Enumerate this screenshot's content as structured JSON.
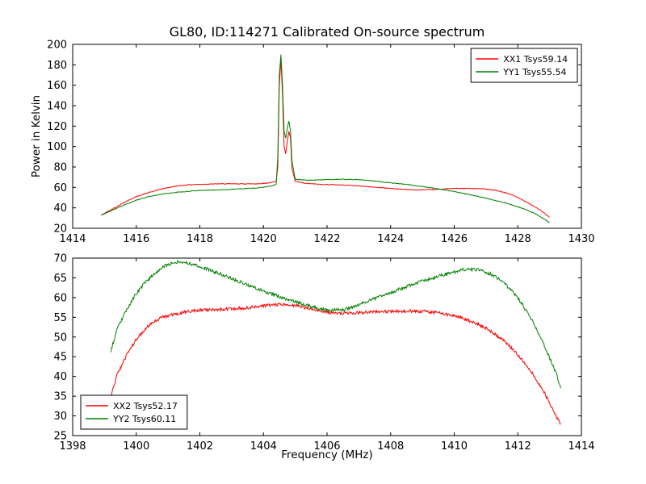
{
  "figure": {
    "background": "#ffffff",
    "frame_color": "#000000"
  },
  "chart_data": [
    {
      "type": "line",
      "name": "top-plot",
      "title": "GL80, ID:114271 Calibrated On-source spectrum",
      "xlabel": "",
      "ylabel": "Power in Kelvin",
      "xlim": [
        1414,
        1430
      ],
      "ylim": [
        20,
        200
      ],
      "xticks": [
        1414,
        1416,
        1418,
        1420,
        1422,
        1424,
        1426,
        1428,
        1430
      ],
      "yticks": [
        20,
        40,
        60,
        80,
        100,
        120,
        140,
        160,
        180,
        200
      ],
      "grid": false,
      "legend_position": "top-right",
      "series": [
        {
          "name": "XX1 Tsys59.14",
          "color": "#ff0000",
          "noise": 0.3,
          "points": [
            [
              1414.9,
              33
            ],
            [
              1415.2,
              38
            ],
            [
              1415.6,
              45
            ],
            [
              1416.0,
              51
            ],
            [
              1416.4,
              55
            ],
            [
              1416.8,
              58.5
            ],
            [
              1417.2,
              61
            ],
            [
              1417.6,
              62.5
            ],
            [
              1418.0,
              63
            ],
            [
              1418.6,
              63.5
            ],
            [
              1419.2,
              63.5
            ],
            [
              1419.8,
              63.5
            ],
            [
              1420.2,
              64.5
            ],
            [
              1420.4,
              66
            ],
            [
              1420.45,
              80
            ],
            [
              1420.5,
              160
            ],
            [
              1420.55,
              185
            ],
            [
              1420.6,
              150
            ],
            [
              1420.65,
              100
            ],
            [
              1420.7,
              93
            ],
            [
              1420.75,
              105
            ],
            [
              1420.8,
              115
            ],
            [
              1420.85,
              108
            ],
            [
              1420.9,
              78
            ],
            [
              1421.0,
              66
            ],
            [
              1421.3,
              64
            ],
            [
              1421.8,
              63
            ],
            [
              1422.4,
              62.5
            ],
            [
              1423.0,
              61.5
            ],
            [
              1423.6,
              60
            ],
            [
              1424.2,
              58.5
            ],
            [
              1424.8,
              57.5
            ],
            [
              1425.4,
              58
            ],
            [
              1426.0,
              59
            ],
            [
              1426.6,
              59
            ],
            [
              1427.0,
              58.5
            ],
            [
              1427.4,
              56.5
            ],
            [
              1427.8,
              53
            ],
            [
              1428.2,
              47
            ],
            [
              1428.6,
              40
            ],
            [
              1429.0,
              31
            ]
          ]
        },
        {
          "name": "YY1 Tsys55.54",
          "color": "#008000",
          "noise": 0.3,
          "points": [
            [
              1414.9,
              33
            ],
            [
              1415.2,
              37
            ],
            [
              1415.6,
              42.5
            ],
            [
              1416.0,
              47.5
            ],
            [
              1416.4,
              51
            ],
            [
              1416.8,
              53.5
            ],
            [
              1417.2,
              55
            ],
            [
              1417.6,
              56
            ],
            [
              1418.0,
              57
            ],
            [
              1418.6,
              57.5
            ],
            [
              1419.2,
              58.5
            ],
            [
              1419.8,
              59.5
            ],
            [
              1420.2,
              61
            ],
            [
              1420.4,
              63
            ],
            [
              1420.45,
              90
            ],
            [
              1420.5,
              170
            ],
            [
              1420.55,
              190
            ],
            [
              1420.6,
              160
            ],
            [
              1420.65,
              115
            ],
            [
              1420.7,
              108
            ],
            [
              1420.75,
              118
            ],
            [
              1420.8,
              125
            ],
            [
              1420.85,
              115
            ],
            [
              1420.9,
              85
            ],
            [
              1421.0,
              68
            ],
            [
              1421.4,
              67
            ],
            [
              1421.9,
              67.5
            ],
            [
              1422.4,
              68
            ],
            [
              1422.9,
              67.8
            ],
            [
              1423.4,
              66.5
            ],
            [
              1424.0,
              64.5
            ],
            [
              1424.6,
              62.5
            ],
            [
              1425.2,
              60
            ],
            [
              1425.8,
              57
            ],
            [
              1426.4,
              53.5
            ],
            [
              1427.0,
              49.5
            ],
            [
              1427.6,
              45
            ],
            [
              1428.2,
              39
            ],
            [
              1428.6,
              33.5
            ],
            [
              1429.0,
              25.5
            ]
          ]
        }
      ]
    },
    {
      "type": "line",
      "name": "bottom-plot",
      "title": "",
      "xlabel": "Frequency (MHz)",
      "ylabel": "",
      "xlim": [
        1398,
        1414
      ],
      "ylim": [
        25,
        70
      ],
      "xticks": [
        1398,
        1400,
        1402,
        1404,
        1406,
        1408,
        1410,
        1412,
        1414
      ],
      "yticks": [
        25,
        30,
        35,
        40,
        45,
        50,
        55,
        60,
        65,
        70
      ],
      "grid": false,
      "legend_position": "bottom-left",
      "series": [
        {
          "name": "XX2 Tsys52.17",
          "color": "#ff0000",
          "noise": 0.4,
          "points": [
            [
              1399.2,
              35
            ],
            [
              1399.4,
              40.5
            ],
            [
              1399.7,
              45.5
            ],
            [
              1400.0,
              49.5
            ],
            [
              1400.4,
              53
            ],
            [
              1400.8,
              55
            ],
            [
              1401.3,
              56
            ],
            [
              1401.9,
              56.8
            ],
            [
              1402.5,
              57
            ],
            [
              1403.1,
              57.2
            ],
            [
              1403.7,
              57.6
            ],
            [
              1404.2,
              58
            ],
            [
              1404.6,
              58.3
            ],
            [
              1405.0,
              58
            ],
            [
              1405.4,
              57.3
            ],
            [
              1405.8,
              56.6
            ],
            [
              1406.2,
              56.1
            ],
            [
              1406.6,
              56
            ],
            [
              1407.1,
              56.2
            ],
            [
              1407.6,
              56.4
            ],
            [
              1408.1,
              56.5
            ],
            [
              1408.6,
              56.6
            ],
            [
              1409.1,
              56.5
            ],
            [
              1409.6,
              56
            ],
            [
              1410.1,
              55.2
            ],
            [
              1410.6,
              53.8
            ],
            [
              1411.1,
              51.8
            ],
            [
              1411.6,
              48.8
            ],
            [
              1412.0,
              45.5
            ],
            [
              1412.4,
              41.5
            ],
            [
              1412.8,
              36.5
            ],
            [
              1413.1,
              31.5
            ],
            [
              1413.35,
              28
            ]
          ]
        },
        {
          "name": "YY2 Tsys60.11",
          "color": "#008000",
          "noise": 0.4,
          "points": [
            [
              1399.2,
              46.5
            ],
            [
              1399.4,
              52
            ],
            [
              1399.7,
              57
            ],
            [
              1400.0,
              61
            ],
            [
              1400.3,
              64
            ],
            [
              1400.6,
              66.3
            ],
            [
              1400.9,
              68
            ],
            [
              1401.2,
              69
            ],
            [
              1401.5,
              69
            ],
            [
              1401.8,
              68.4
            ],
            [
              1402.2,
              67.3
            ],
            [
              1402.7,
              65.8
            ],
            [
              1403.2,
              64.2
            ],
            [
              1403.7,
              62.6
            ],
            [
              1404.2,
              61.1
            ],
            [
              1404.7,
              59.7
            ],
            [
              1405.2,
              58.4
            ],
            [
              1405.7,
              57.3
            ],
            [
              1406.1,
              56.6
            ],
            [
              1406.3,
              57
            ],
            [
              1406.5,
              56.8
            ],
            [
              1407.0,
              58.2
            ],
            [
              1407.5,
              59.8
            ],
            [
              1408.0,
              61.3
            ],
            [
              1408.5,
              62.8
            ],
            [
              1409.0,
              64.2
            ],
            [
              1409.5,
              65.4
            ],
            [
              1410.0,
              66.5
            ],
            [
              1410.4,
              67.3
            ],
            [
              1410.8,
              67
            ],
            [
              1411.2,
              65.8
            ],
            [
              1411.6,
              63.5
            ],
            [
              1412.0,
              60
            ],
            [
              1412.4,
              55
            ],
            [
              1412.8,
              48.5
            ],
            [
              1413.2,
              41
            ],
            [
              1413.35,
              37
            ]
          ]
        }
      ]
    }
  ]
}
